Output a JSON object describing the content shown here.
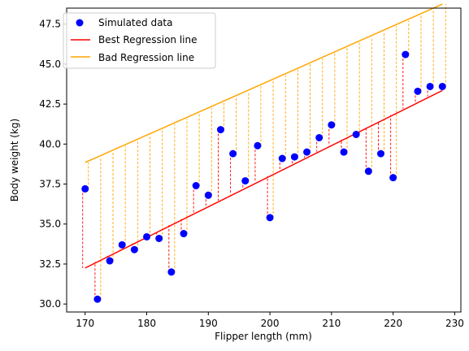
{
  "chart_data": {
    "type": "scatter",
    "xlabel": "Flipper length (mm)",
    "ylabel": "Body weight (kg)",
    "xlim": [
      167,
      231
    ],
    "ylim": [
      29.5,
      48.5
    ],
    "xticks": [
      170,
      180,
      190,
      200,
      210,
      220,
      230
    ],
    "yticks": [
      30.0,
      32.5,
      35.0,
      37.5,
      40.0,
      42.5,
      45.0,
      47.5
    ],
    "grid": false,
    "legend_position": "top-left",
    "colors": {
      "points": "#0000ff",
      "best_line": "#ff0000",
      "bad_line": "#ffa500"
    },
    "series": [
      {
        "name": "Simulated data",
        "kind": "scatter",
        "x": [
          170,
          172,
          174,
          176,
          178,
          180,
          182,
          184,
          186,
          188,
          190,
          192,
          194,
          196,
          198,
          200,
          202,
          204,
          206,
          208,
          210,
          212,
          214,
          216,
          218,
          220,
          222,
          224,
          226,
          228
        ],
        "y": [
          37.2,
          30.3,
          32.7,
          33.7,
          33.4,
          34.2,
          34.1,
          32.0,
          34.4,
          37.4,
          36.8,
          40.9,
          39.4,
          37.7,
          39.9,
          35.4,
          39.1,
          39.2,
          39.5,
          40.4,
          41.2,
          39.5,
          40.6,
          38.3,
          39.4,
          37.9,
          45.6,
          43.3,
          43.6,
          43.6
        ]
      },
      {
        "name": "Best Regression line",
        "kind": "line",
        "x": [
          170,
          228
        ],
        "y": [
          32.25,
          43.35
        ]
      },
      {
        "name": "Bad Regression line",
        "kind": "line",
        "x": [
          170,
          228
        ],
        "y": [
          38.85,
          48.75
        ]
      }
    ]
  }
}
